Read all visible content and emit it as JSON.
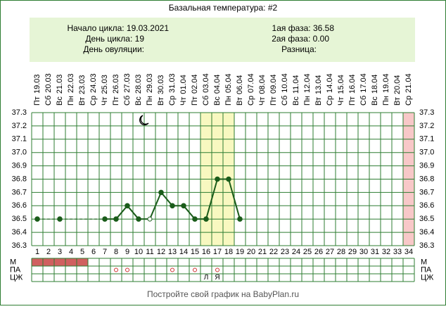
{
  "chart_data": {
    "type": "line",
    "title": "Базальная температура: #2",
    "info_left": [
      {
        "label": "Начало цикла: 19.03.2021"
      },
      {
        "label": "День цикла: 19"
      },
      {
        "label": "День овуляции:"
      }
    ],
    "info_right": [
      {
        "label": "1ая фаза: 36.58"
      },
      {
        "label": "2ая фаза: 0.00"
      },
      {
        "label": "Разница:"
      }
    ],
    "x": [
      1,
      2,
      3,
      4,
      5,
      6,
      7,
      8,
      9,
      10,
      11,
      12,
      13,
      14,
      15,
      16,
      17,
      18,
      19,
      20,
      21,
      22,
      23,
      24,
      25,
      26,
      27,
      28,
      29,
      30,
      31,
      32,
      33,
      34
    ],
    "weekdays": [
      "Пт",
      "Сб",
      "Вс",
      "Пн",
      "Вт",
      "Ср",
      "Чт",
      "Пт",
      "Сб",
      "Вс",
      "Пн",
      "Вт",
      "Ср",
      "Чт",
      "Пт",
      "Сб",
      "Вс",
      "Пн",
      "Вт",
      "Ср",
      "Чт",
      "Пт",
      "Сб",
      "Вс",
      "Пн",
      "Вт",
      "Ср",
      "Чт",
      "Пт",
      "Сб",
      "Вс",
      "Пн",
      "Вт",
      "Ср"
    ],
    "dates": [
      "19.03",
      "20.03",
      "21.03",
      "22.03",
      "23.03",
      "24.03",
      "25.03",
      "26.03",
      "27.03",
      "28.03",
      "29.03",
      "30.03",
      "31.03",
      "01.04",
      "02.04",
      "03.04",
      "04.04",
      "05.04",
      "06.04",
      "07.04",
      "08.04",
      "09.04",
      "10.04",
      "11.04",
      "12.04",
      "13.04",
      "14.04",
      "15.04",
      "16.04",
      "17.04",
      "18.04",
      "19.04",
      "20.04",
      "21.04"
    ],
    "series": [
      {
        "name": "Температура",
        "color": "#1a5c1a",
        "values": [
          36.5,
          null,
          36.5,
          null,
          null,
          null,
          36.5,
          36.5,
          36.6,
          36.5,
          36.5,
          36.7,
          36.6,
          36.6,
          36.5,
          36.5,
          36.8,
          36.8,
          36.5,
          null,
          null,
          null,
          null,
          null,
          null,
          null,
          null,
          null,
          null,
          null,
          null,
          null,
          null,
          null
        ]
      }
    ],
    "open_points": [
      11
    ],
    "ylim": [
      36.3,
      37.3
    ],
    "yticks": [
      36.3,
      36.4,
      36.5,
      36.6,
      36.7,
      36.8,
      36.9,
      {
        "value": 37,
        "label": "37.0"
      },
      37.1,
      37.2,
      37.3
    ],
    "highlight_days": [
      16,
      17,
      18
    ],
    "highlight_color": "#f8f8c0",
    "mark_days": [
      34
    ],
    "mark_color": "#f8c8c8",
    "rows": [
      {
        "label": "М"
      },
      {
        "label": "ПА"
      },
      {
        "label": "ЦЖ"
      }
    ],
    "m_days": [
      1,
      2,
      3,
      4,
      5
    ],
    "m_color": "#d06060",
    "pa_days": [
      8,
      9,
      13,
      15,
      17
    ],
    "cz": [
      {
        "day": 16,
        "label": "Л"
      },
      {
        "day": 17,
        "label": "Я"
      }
    ],
    "footer": "Постройте свой график на BabyPlan.ru"
  }
}
